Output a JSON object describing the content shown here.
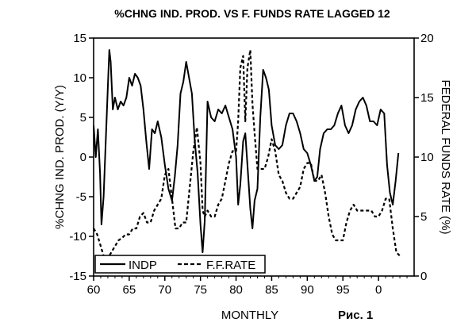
{
  "chart_data": {
    "type": "line",
    "title": "%CHNG IND. PROD. VS F. FUNDS RATE LAGGED 12",
    "xlabel": "MONTHLY",
    "ylabel_left": "%CHNG IND. PROD. (Y/Y)",
    "ylabel_right": "FEDERAL FUNDS RATE (%)",
    "figure_label": "Рис. 1",
    "xlim": [
      1960,
      2005
    ],
    "x_ticks": [
      60,
      65,
      70,
      75,
      80,
      85,
      90,
      95,
      0
    ],
    "x_tick_positions": [
      1960,
      1965,
      1970,
      1975,
      1980,
      1985,
      1990,
      1995,
      2000
    ],
    "ylim_left": [
      -15,
      15
    ],
    "y_ticks_left": [
      -15,
      -10,
      -5,
      0,
      5,
      10,
      15
    ],
    "ylim_right": [
      0,
      20
    ],
    "y_ticks_right": [
      0,
      5,
      10,
      15,
      20
    ],
    "grid": false,
    "legend_position": "bottom-left",
    "series": [
      {
        "name": "INDP",
        "axis": "left",
        "style": "solid",
        "x": [
          1960.0,
          1960.3,
          1960.6,
          1960.9,
          1961.1,
          1961.4,
          1961.7,
          1962.0,
          1962.2,
          1962.4,
          1962.7,
          1963.0,
          1963.4,
          1963.8,
          1964.2,
          1964.6,
          1965.0,
          1965.4,
          1965.8,
          1966.2,
          1966.6,
          1967.0,
          1967.4,
          1967.8,
          1968.2,
          1968.6,
          1969.0,
          1969.5,
          1970.0,
          1970.5,
          1971.0,
          1971.4,
          1971.8,
          1972.2,
          1972.6,
          1973.0,
          1973.4,
          1973.8,
          1974.2,
          1974.6,
          1975.0,
          1975.3,
          1975.6,
          1976.0,
          1976.5,
          1977.0,
          1977.5,
          1978.0,
          1978.5,
          1979.0,
          1979.5,
          1980.0,
          1980.3,
          1980.6,
          1981.0,
          1981.3,
          1981.6,
          1982.0,
          1982.3,
          1982.6,
          1983.0,
          1983.4,
          1983.8,
          1984.2,
          1984.6,
          1985.0,
          1985.5,
          1986.0,
          1986.5,
          1987.0,
          1987.5,
          1988.0,
          1988.5,
          1989.0,
          1989.5,
          1990.0,
          1990.5,
          1991.0,
          1991.4,
          1991.8,
          1992.3,
          1992.8,
          1993.3,
          1993.8,
          1994.3,
          1994.8,
          1995.3,
          1995.8,
          1996.3,
          1996.8,
          1997.3,
          1997.8,
          1998.3,
          1998.8,
          1999.3,
          1999.8,
          2000.3,
          2000.8,
          2001.2,
          2001.6,
          2002.0,
          2002.4,
          2002.8
        ],
        "y": [
          4.0,
          0.0,
          3.5,
          -2.0,
          -8.5,
          -5.0,
          2.0,
          9.0,
          13.5,
          12.0,
          6.0,
          7.5,
          6.0,
          7.0,
          6.5,
          7.5,
          10.0,
          9.0,
          10.5,
          10.0,
          9.0,
          6.0,
          2.0,
          -1.5,
          3.5,
          3.0,
          4.5,
          2.5,
          -1.0,
          -4.0,
          -5.5,
          -2.5,
          1.5,
          8.0,
          9.5,
          12.0,
          10.0,
          8.0,
          2.0,
          -2.0,
          -8.5,
          -12.0,
          -8.0,
          7.0,
          5.0,
          4.5,
          6.0,
          5.5,
          6.5,
          5.0,
          3.5,
          0.0,
          -6.0,
          -3.5,
          2.0,
          3.0,
          -1.0,
          -6.5,
          -9.0,
          -5.5,
          -4.0,
          5.0,
          11.0,
          10.0,
          8.5,
          4.0,
          1.5,
          1.0,
          1.5,
          4.0,
          5.5,
          5.5,
          4.5,
          3.0,
          1.0,
          0.5,
          -1.0,
          -3.0,
          -2.5,
          1.0,
          3.0,
          3.5,
          3.5,
          4.0,
          5.5,
          6.5,
          4.0,
          3.0,
          4.0,
          6.0,
          7.0,
          7.5,
          6.5,
          4.5,
          4.5,
          4.0,
          6.0,
          5.5,
          -1.0,
          -4.5,
          -6.0,
          -3.0,
          0.5
        ]
      },
      {
        "name": "F.F.RATE",
        "axis": "right",
        "style": "dashed",
        "x": [
          1960.0,
          1960.5,
          1961.0,
          1961.5,
          1962.0,
          1962.5,
          1963.0,
          1963.5,
          1964.0,
          1964.5,
          1965.0,
          1965.5,
          1966.0,
          1966.5,
          1967.0,
          1967.5,
          1968.0,
          1968.5,
          1969.0,
          1969.5,
          1970.0,
          1970.5,
          1971.0,
          1971.5,
          1972.0,
          1972.5,
          1973.0,
          1973.5,
          1974.0,
          1974.5,
          1975.0,
          1975.3,
          1975.6,
          1976.0,
          1976.5,
          1977.0,
          1977.5,
          1978.0,
          1978.5,
          1979.0,
          1979.5,
          1980.0,
          1980.3,
          1980.6,
          1981.0,
          1981.3,
          1981.6,
          1982.0,
          1982.3,
          1982.6,
          1983.0,
          1983.5,
          1984.0,
          1984.5,
          1985.0,
          1985.5,
          1986.0,
          1986.5,
          1987.0,
          1987.5,
          1988.0,
          1988.5,
          1989.0,
          1989.5,
          1990.0,
          1990.5,
          1991.0,
          1991.5,
          1992.0,
          1992.5,
          1993.0,
          1993.5,
          1994.0,
          1994.5,
          1995.0,
          1995.5,
          1996.0,
          1996.5,
          1997.0,
          1997.5,
          1998.0,
          1998.5,
          1999.0,
          1999.5,
          2000.0,
          2000.5,
          2001.0,
          2001.5,
          2002.0,
          2002.5,
          2003.0
        ],
        "y": [
          4.0,
          3.5,
          2.5,
          1.5,
          1.5,
          2.0,
          2.5,
          3.0,
          3.2,
          3.5,
          3.5,
          4.0,
          4.0,
          5.0,
          5.3,
          4.5,
          4.5,
          5.5,
          6.0,
          6.5,
          8.5,
          9.0,
          6.5,
          4.0,
          4.0,
          4.5,
          4.5,
          7.5,
          10.5,
          12.5,
          9.5,
          5.5,
          5.0,
          5.5,
          5.0,
          5.0,
          6.0,
          6.5,
          8.0,
          9.5,
          10.5,
          10.5,
          13.0,
          17.5,
          18.5,
          13.0,
          17.5,
          19.0,
          14.5,
          12.0,
          9.0,
          9.0,
          9.0,
          10.0,
          11.5,
          10.5,
          8.5,
          8.0,
          7.0,
          6.5,
          6.5,
          7.0,
          7.5,
          9.0,
          9.5,
          9.5,
          8.0,
          8.0,
          8.5,
          7.0,
          5.0,
          3.5,
          3.0,
          3.0,
          3.0,
          4.5,
          5.5,
          6.0,
          5.5,
          5.5,
          5.5,
          5.5,
          5.5,
          5.0,
          5.0,
          5.5,
          6.5,
          6.5,
          4.0,
          2.0,
          1.7
        ]
      }
    ]
  }
}
